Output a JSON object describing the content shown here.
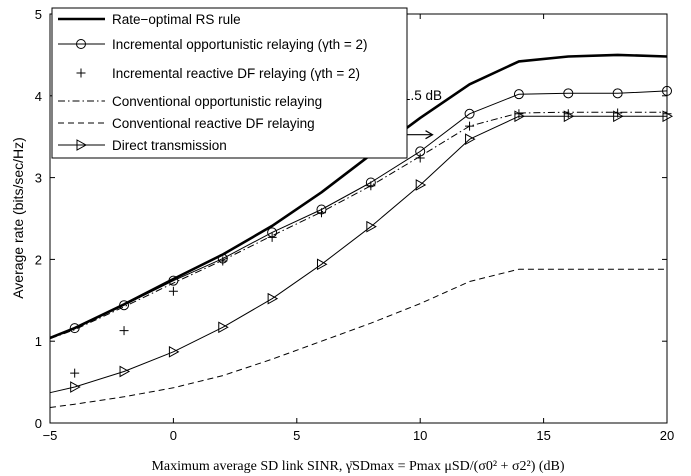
{
  "chart_data": {
    "type": "line",
    "xlabel": "Maximum average SD link SINR, γ̄SDmax = Pmax μSD/(σ0² + σ2²) (dB)",
    "ylabel": "Average rate (bits/sec/Hz)",
    "xlim": [
      -5,
      20
    ],
    "ylim": [
      0,
      5
    ],
    "xticks": [
      "−5",
      "0",
      "5",
      "10",
      "15",
      "20"
    ],
    "yticks": [
      "0",
      "1",
      "2",
      "3",
      "4",
      "5"
    ],
    "grid": false,
    "legend_position": "top-left",
    "annotation": {
      "text": "1.5 dB",
      "arrow_from": [
        8.5,
        3.5
      ],
      "arrow_to": [
        10.5,
        3.5
      ]
    },
    "series": [
      {
        "name": "Rate−optimal RS rule",
        "style": "solid-thick",
        "marker": "none",
        "x": [
          -5,
          -4,
          -2,
          0,
          2,
          4,
          6,
          8,
          10,
          12,
          14,
          16,
          18,
          20
        ],
        "y": [
          1.04,
          1.16,
          1.45,
          1.76,
          2.06,
          2.41,
          2.82,
          3.28,
          3.73,
          4.14,
          4.42,
          4.48,
          4.5,
          4.48
        ]
      },
      {
        "name": "Incremental opportunistic relaying (γth = 2)",
        "style": "solid",
        "marker": "circle",
        "x": [
          -5,
          -4,
          -2,
          0,
          2,
          4,
          6,
          8,
          10,
          12,
          14,
          16,
          18,
          20
        ],
        "y": [
          1.04,
          1.16,
          1.44,
          1.74,
          2.01,
          2.33,
          2.61,
          2.94,
          3.32,
          3.78,
          4.02,
          4.03,
          4.03,
          4.06
        ]
      },
      {
        "name": "Incremental reactive DF relaying (γth = 2)",
        "style": "none",
        "marker": "plus",
        "x": [
          -4,
          -2,
          0,
          2,
          4,
          6,
          8,
          10,
          12,
          14,
          16,
          18,
          20
        ],
        "y": [
          0.61,
          1.13,
          1.61,
          1.98,
          2.27,
          2.57,
          2.9,
          3.24,
          3.63,
          3.78,
          3.78,
          3.79,
          3.78
        ]
      },
      {
        "name": "Conventional opportunistic relaying",
        "style": "dashdot",
        "marker": "none",
        "x": [
          -5,
          -4,
          -2,
          0,
          2,
          4,
          6,
          8,
          10,
          12,
          14,
          16,
          18,
          20
        ],
        "y": [
          1.03,
          1.14,
          1.42,
          1.71,
          1.99,
          2.29,
          2.58,
          2.9,
          3.26,
          3.63,
          3.79,
          3.8,
          3.8,
          3.8
        ]
      },
      {
        "name": "Conventional reactive DF relaying",
        "style": "dashed",
        "marker": "none",
        "x": [
          -5,
          -4,
          -2,
          0,
          2,
          4,
          6,
          8,
          10,
          12,
          14,
          16,
          18,
          20
        ],
        "y": [
          0.19,
          0.23,
          0.32,
          0.43,
          0.58,
          0.78,
          1.0,
          1.22,
          1.46,
          1.73,
          1.88,
          1.88,
          1.88,
          1.88
        ]
      },
      {
        "name": "Direct transmission",
        "style": "solid",
        "marker": "triangle-right",
        "x": [
          -5,
          -4,
          -2,
          0,
          2,
          4,
          6,
          8,
          10,
          12,
          14,
          16,
          18,
          20
        ],
        "y": [
          0.37,
          0.44,
          0.63,
          0.87,
          1.17,
          1.52,
          1.94,
          2.4,
          2.91,
          3.47,
          3.75,
          3.75,
          3.75,
          3.75
        ]
      }
    ]
  }
}
